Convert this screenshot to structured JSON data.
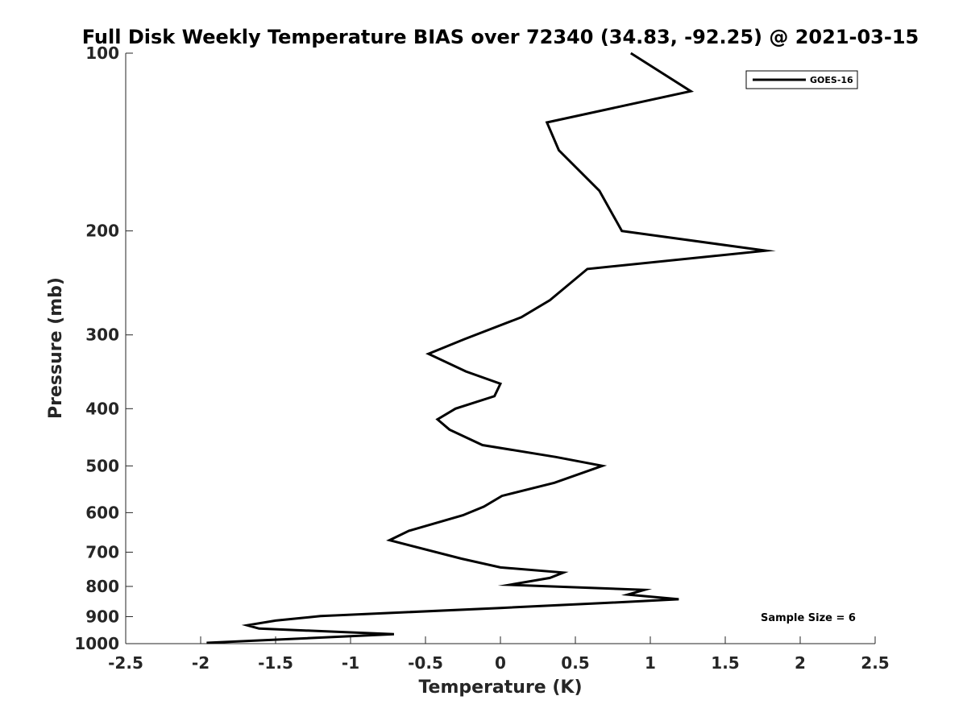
{
  "chart_data": {
    "type": "line",
    "title": "Full Disk Weekly Temperature BIAS over 72340 (34.83, -92.25) @ 2021-03-15",
    "xlabel": "Temperature (K)",
    "ylabel": "Pressure (mb)",
    "xlim": [
      -2.5,
      2.5
    ],
    "ylim": [
      1000,
      100
    ],
    "yscale": "log",
    "y_reversed": true,
    "grid": false,
    "legend_position": "top-right",
    "x_ticks": [
      -2.5,
      -2,
      -1.5,
      -1,
      -0.5,
      0,
      0.5,
      1,
      1.5,
      2,
      2.5
    ],
    "x_tick_labels": [
      "-2.5",
      "-2",
      "-1.5",
      "-1",
      "-0.5",
      "0",
      "0.5",
      "1",
      "1.5",
      "2",
      "2.5"
    ],
    "y_ticks": [
      100,
      200,
      300,
      400,
      500,
      600,
      700,
      800,
      900,
      1000
    ],
    "y_tick_labels": [
      "100",
      "200",
      "300",
      "400",
      "500",
      "600",
      "700",
      "800",
      "900",
      "1000"
    ],
    "series": [
      {
        "name": "GOES-16",
        "color": "#000000",
        "x": [
          0.87,
          1.27,
          0.31,
          0.39,
          0.66,
          0.81,
          1.77,
          0.58,
          0.33,
          0.14,
          -0.24,
          -0.48,
          -0.23,
          0.0,
          -0.04,
          -0.3,
          -0.42,
          -0.34,
          -0.12,
          0.37,
          0.68,
          0.36,
          0.01,
          -0.11,
          -0.25,
          -0.61,
          -0.74,
          -0.26,
          0.0,
          0.42,
          0.33,
          0.06,
          0.96,
          0.85,
          1.19,
          0.71,
          0.0,
          -1.2,
          -1.5,
          -1.69,
          -1.61,
          -0.71,
          -1.96
        ],
        "y": [
          100,
          116,
          131,
          146,
          171,
          200,
          216,
          232,
          262,
          280,
          305,
          323,
          346,
          363,
          381,
          400,
          417,
          434,
          461,
          483,
          500,
          534,
          562,
          586,
          606,
          644,
          668,
          718,
          743,
          758,
          774,
          795,
          811,
          826,
          841,
          853,
          870,
          898,
          914,
          931,
          943,
          964,
          997
        ]
      }
    ],
    "annotations": [
      "Sample Size = 6"
    ]
  }
}
